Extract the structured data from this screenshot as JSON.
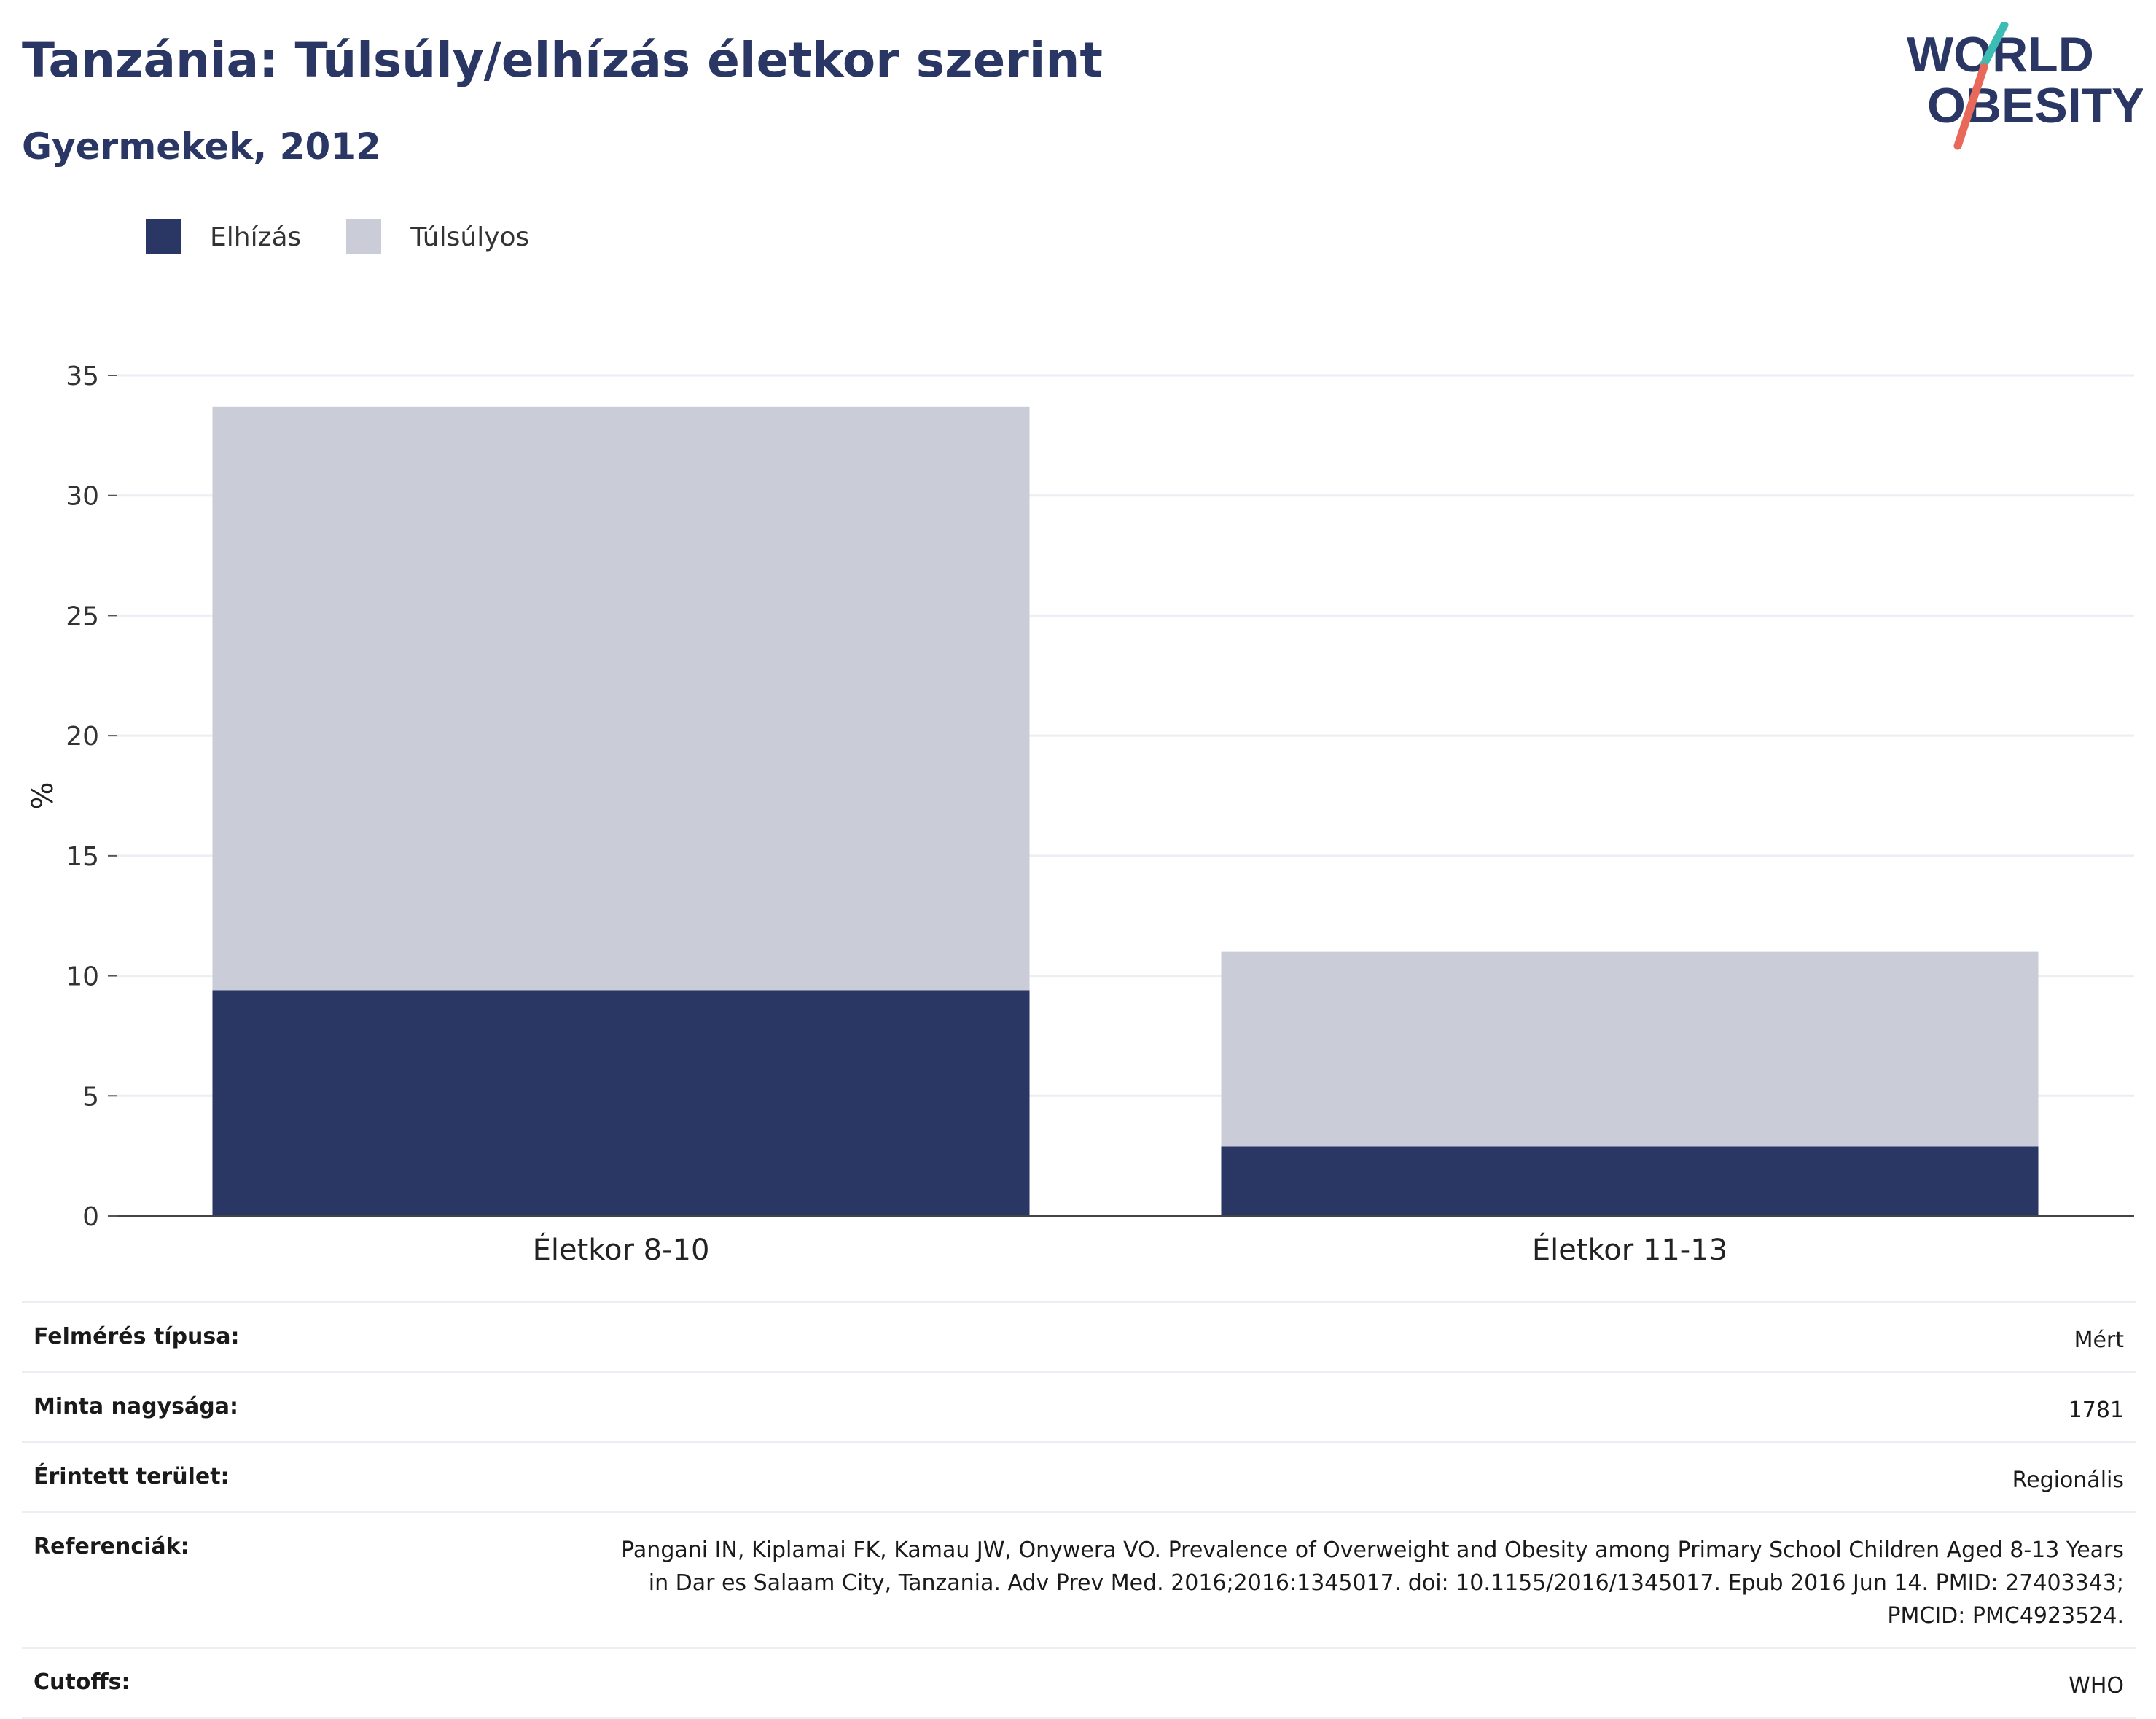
{
  "header": {
    "title": "Tanzánia: Túlsúly/elhízás életkor szerint",
    "subtitle": "Gyermekek, 2012"
  },
  "logo": {
    "line1": "WORLD",
    "line2": "OBESITY",
    "teal": "#3bbcb5",
    "coral": "#e8695a",
    "navy": "#2a3764"
  },
  "legend": [
    {
      "label": "Elhízás",
      "color": "#2a3764"
    },
    {
      "label": "Túlsúlyos",
      "color": "#cacdd8"
    }
  ],
  "chart_data": {
    "type": "bar",
    "stacked": true,
    "categories": [
      "Életkor 8-10",
      "Életkor 11-13"
    ],
    "series": [
      {
        "name": "Elhízás",
        "values": [
          9.4,
          2.9
        ],
        "color": "#2a3764"
      },
      {
        "name": "Túlsúlyos",
        "values": [
          24.3,
          8.1
        ],
        "color": "#cacdd8"
      }
    ],
    "ylabel": "%",
    "ylim": [
      0,
      35
    ],
    "yticks": [
      0,
      5,
      10,
      15,
      20,
      25,
      30,
      35
    ],
    "grid": true,
    "legend_position": "top-left"
  },
  "meta": [
    {
      "key": "Felmérés típusa:",
      "value": "Mért"
    },
    {
      "key": "Minta nagysága:",
      "value": "1781"
    },
    {
      "key": "Érintett terület:",
      "value": "Regionális"
    },
    {
      "key": "Referenciák:",
      "value": "Pangani IN, Kiplamai FK, Kamau JW, Onywera VO. Prevalence of Overweight and Obesity among Primary School Children Aged 8-13 Years in Dar es Salaam City, Tanzania. Adv Prev Med. 2016;2016:1345017. doi: 10.1155/2016/1345017. Epub 2016 Jun 14. PMID: 27403343; PMCID: PMC4923524."
    },
    {
      "key": "Cutoffs:",
      "value": "WHO"
    }
  ]
}
